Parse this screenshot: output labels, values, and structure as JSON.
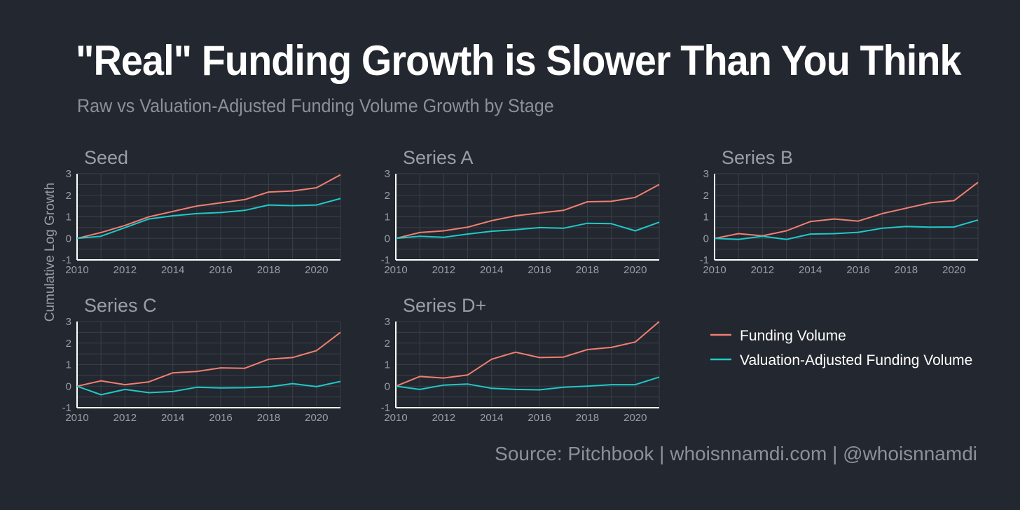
{
  "title": "\"Real\" Funding Growth is Slower Than You Think",
  "subtitle": "Raw vs Valuation-Adjusted Funding Volume Growth by Stage",
  "source": "Source: Pitchbook | whoisnnamdi.com | @whoisnnamdi",
  "colors": {
    "background": "#23272f",
    "funding": "#f07f72",
    "adjusted": "#1ec9c9",
    "grid": "#3a3f49",
    "axis": "#ffffff"
  },
  "chart_data": {
    "type": "line",
    "ylabel": "Cumulative Log Growth",
    "xlim": [
      2010,
      2021
    ],
    "ylim": [
      -1,
      3
    ],
    "x_ticks": [
      2010,
      2012,
      2014,
      2016,
      2018,
      2020
    ],
    "y_ticks": [
      -1,
      0,
      1,
      2,
      3
    ],
    "grid": true,
    "legend": {
      "position": "right",
      "entries": [
        "Funding Volume",
        "Valuation-Adjusted Funding Volume"
      ]
    },
    "x": [
      2010,
      2011,
      2012,
      2013,
      2014,
      2015,
      2016,
      2017,
      2018,
      2019,
      2020,
      2021
    ],
    "panels": [
      {
        "name": "Seed",
        "series": [
          {
            "name": "Funding Volume",
            "values": [
              0,
              0.27,
              0.6,
              1.0,
              1.25,
              1.5,
              1.65,
              1.8,
              2.15,
              2.2,
              2.35,
              2.95
            ]
          },
          {
            "name": "Valuation-Adjusted Funding Volume",
            "values": [
              0,
              0.1,
              0.5,
              0.9,
              1.05,
              1.15,
              1.2,
              1.3,
              1.55,
              1.52,
              1.55,
              1.85
            ]
          }
        ]
      },
      {
        "name": "Series A",
        "series": [
          {
            "name": "Funding Volume",
            "values": [
              0,
              0.27,
              0.35,
              0.52,
              0.82,
              1.05,
              1.18,
              1.3,
              1.7,
              1.72,
              1.9,
              2.5
            ]
          },
          {
            "name": "Valuation-Adjusted Funding Volume",
            "values": [
              0,
              0.1,
              0.05,
              0.2,
              0.33,
              0.4,
              0.5,
              0.47,
              0.7,
              0.68,
              0.35,
              0.75
            ]
          }
        ]
      },
      {
        "name": "Series B",
        "series": [
          {
            "name": "Funding Volume",
            "values": [
              0,
              0.22,
              0.12,
              0.35,
              0.78,
              0.9,
              0.8,
              1.15,
              1.4,
              1.65,
              1.75,
              2.6
            ]
          },
          {
            "name": "Valuation-Adjusted Funding Volume",
            "values": [
              0,
              -0.05,
              0.1,
              -0.05,
              0.2,
              0.22,
              0.28,
              0.47,
              0.55,
              0.52,
              0.53,
              0.85
            ]
          }
        ]
      },
      {
        "name": "Series C",
        "series": [
          {
            "name": "Funding Volume",
            "values": [
              0,
              0.25,
              0.07,
              0.2,
              0.62,
              0.68,
              0.85,
              0.83,
              1.25,
              1.33,
              1.65,
              2.5
            ]
          },
          {
            "name": "Valuation-Adjusted Funding Volume",
            "values": [
              0,
              -0.4,
              -0.15,
              -0.3,
              -0.25,
              -0.05,
              -0.08,
              -0.07,
              -0.03,
              0.12,
              -0.02,
              0.22
            ]
          }
        ]
      },
      {
        "name": "Series D+",
        "series": [
          {
            "name": "Funding Volume",
            "values": [
              0,
              0.45,
              0.38,
              0.52,
              1.25,
              1.58,
              1.33,
              1.35,
              1.7,
              1.8,
              2.05,
              3.0
            ]
          },
          {
            "name": "Valuation-Adjusted Funding Volume",
            "values": [
              0,
              -0.15,
              0.05,
              0.1,
              -0.1,
              -0.15,
              -0.17,
              -0.05,
              0,
              0.07,
              0.07,
              0.42
            ]
          }
        ]
      }
    ]
  }
}
